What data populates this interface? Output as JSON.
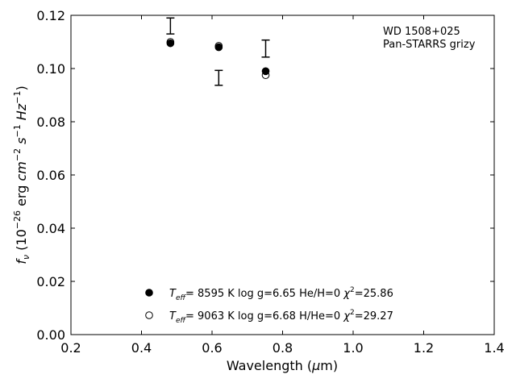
{
  "chart_data": {
    "type": "scatter",
    "title": "",
    "annotation": {
      "line1": "WD 1508+025",
      "line2": "Pan-STARRS grizy"
    },
    "xlabel": {
      "prefix": "Wavelength (",
      "mu": "μ",
      "suffix": "m)"
    },
    "ylabel": {
      "f": "f",
      "nu": "ν",
      "open": " (10",
      "exp1": "−26",
      "erg": " erg ",
      "cm": "cm",
      "exp2": "−2",
      "s": " s",
      "exp3": "−1",
      "hz": " Hz",
      "exp4": "−1",
      "close": ")"
    },
    "xlim": [
      0.2,
      1.4
    ],
    "ylim": [
      0.0,
      0.12
    ],
    "xticks": [
      0.2,
      0.4,
      0.6,
      0.8,
      1.0,
      1.2,
      1.4
    ],
    "yticks": [
      0.0,
      0.02,
      0.04,
      0.06,
      0.08,
      0.1,
      0.12
    ],
    "xtick_labels": [
      "0.2",
      "0.4",
      "0.6",
      "0.8",
      "1.0",
      "1.2",
      "1.4"
    ],
    "ytick_labels": [
      "0.00",
      "0.02",
      "0.04",
      "0.06",
      "0.08",
      "0.10",
      "0.12"
    ],
    "grid": false,
    "legend_position": "bottom-center",
    "observed": {
      "x": [
        0.482,
        0.619,
        0.752
      ],
      "y": [
        0.116,
        0.0965,
        0.1075
      ],
      "err": [
        0.003,
        0.0028,
        0.0032
      ]
    },
    "series": [
      {
        "marker": "filled-circle",
        "x": [
          0.482,
          0.619,
          0.752
        ],
        "y": [
          0.1095,
          0.108,
          0.099
        ],
        "legend": {
          "T": "T",
          "eff": "eff",
          "eq": "=  8595 K  log g=6.65  He/H=0  ",
          "chi": "χ",
          "sq": "2",
          "chival": "=25.86"
        }
      },
      {
        "marker": "open-circle",
        "x": [
          0.482,
          0.619,
          0.752
        ],
        "y": [
          0.11,
          0.1085,
          0.0975
        ],
        "legend": {
          "T": "T",
          "eff": "eff",
          "eq": "=  9063 K  log g=6.68  H/He=0  ",
          "chi": "χ",
          "sq": "2",
          "chival": "=29.27"
        }
      }
    ]
  }
}
